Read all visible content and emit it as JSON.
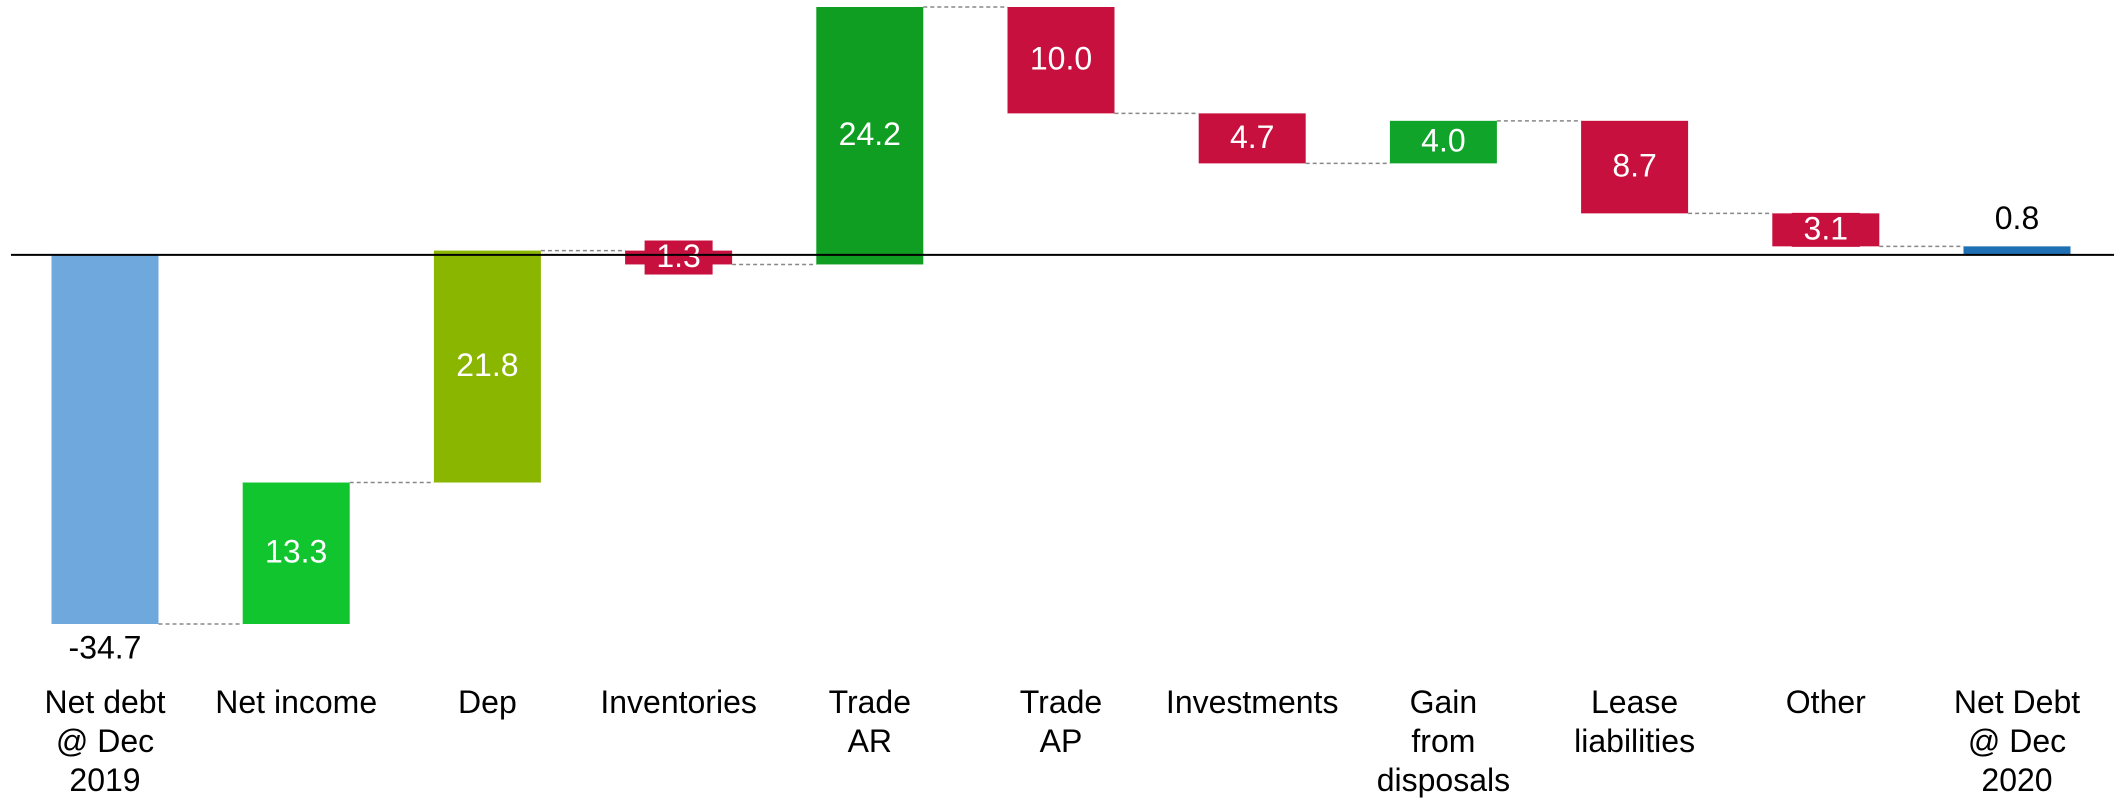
{
  "chart_data": {
    "type": "waterfall",
    "categories": [
      "Net debt\n@ Dec\n2019",
      "Net income",
      "Dep",
      "Inventories",
      "Trade\nAR",
      "Trade\nAP",
      "Investments",
      "Gain\nfrom\ndisposals",
      "Lease\nliabilities",
      "Other",
      "Net Debt\n@ Dec\n2020"
    ],
    "values": [
      -34.7,
      13.3,
      21.8,
      -1.3,
      24.2,
      -10.0,
      -4.7,
      4.0,
      -8.7,
      -3.1,
      0.8
    ],
    "value_labels": [
      "-34.7",
      "13.3",
      "21.8",
      "1.3",
      "24.2",
      "10.0",
      "4.7",
      "4.0",
      "8.7",
      "3.1",
      "0.8"
    ],
    "totals": [
      true,
      false,
      false,
      false,
      false,
      false,
      false,
      false,
      false,
      false,
      true
    ],
    "colors": [
      "#6fa8dc",
      "#11c52f",
      "#8ab600",
      "#c8103e",
      "#0f9e22",
      "#c8103e",
      "#c8103e",
      "#10a52a",
      "#c8103e",
      "#c8103e",
      "#1f6fb5"
    ]
  }
}
